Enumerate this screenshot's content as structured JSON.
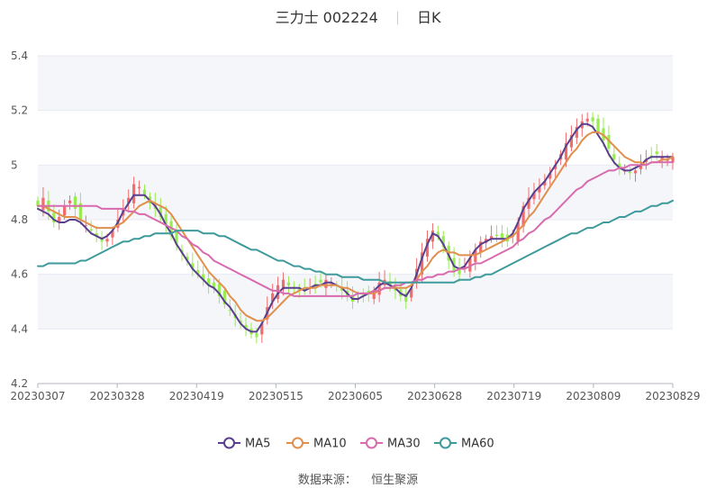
{
  "header": {
    "name": "三力士",
    "code": "002224",
    "period": "日K"
  },
  "source": {
    "label": "数据来源：",
    "value": "恒生聚源"
  },
  "colors": {
    "up": "#ef6d6d",
    "down": "#97ec4f",
    "grid": "#e8eaf2",
    "band": "#f5f6fa",
    "axis": "#b0b4bf"
  },
  "chart_data": {
    "type": "candlestick",
    "x_ticks": [
      "20230307",
      "20230328",
      "20230419",
      "20230515",
      "20230605",
      "20230628",
      "20230719",
      "20230809",
      "20230829"
    ],
    "y_ticks": [
      "4.2",
      "4.4",
      "4.6",
      "4.8",
      "5",
      "5.2",
      "5.4"
    ],
    "ylim": [
      4.2,
      5.4
    ],
    "legend": [
      {
        "name": "MA5",
        "color": "#5a3f8e"
      },
      {
        "name": "MA10",
        "color": "#e08f4d"
      },
      {
        "name": "MA30",
        "color": "#d86aaf"
      },
      {
        "name": "MA60",
        "color": "#3f9a9c"
      }
    ],
    "num_days": 120,
    "close": [
      4.85,
      4.88,
      4.83,
      4.79,
      4.81,
      4.85,
      4.87,
      4.84,
      4.8,
      4.78,
      4.76,
      4.74,
      4.72,
      4.73,
      4.76,
      4.8,
      4.84,
      4.88,
      4.93,
      4.92,
      4.89,
      4.86,
      4.84,
      4.81,
      4.78,
      4.74,
      4.71,
      4.68,
      4.65,
      4.62,
      4.6,
      4.58,
      4.56,
      4.55,
      4.52,
      4.49,
      4.47,
      4.44,
      4.42,
      4.4,
      4.38,
      4.37,
      4.42,
      4.48,
      4.53,
      4.56,
      4.58,
      4.56,
      4.55,
      4.54,
      4.54,
      4.55,
      4.56,
      4.57,
      4.58,
      4.57,
      4.56,
      4.54,
      4.52,
      4.5,
      4.51,
      4.52,
      4.53,
      4.54,
      4.57,
      4.58,
      4.56,
      4.54,
      4.52,
      4.5,
      4.55,
      4.62,
      4.68,
      4.73,
      4.76,
      4.74,
      4.7,
      4.65,
      4.61,
      4.6,
      4.63,
      4.66,
      4.69,
      4.72,
      4.73,
      4.74,
      4.74,
      4.73,
      4.72,
      4.74,
      4.79,
      4.85,
      4.88,
      4.9,
      4.92,
      4.94,
      4.97,
      5.0,
      5.04,
      5.08,
      5.11,
      5.14,
      5.16,
      5.17,
      5.16,
      5.12,
      5.09,
      5.06,
      5.02,
      4.99,
      4.98,
      4.97,
      4.98,
      5.0,
      5.02,
      5.03,
      5.04,
      5.03,
      5.02,
      5.03
    ],
    "series": [
      {
        "name": "MA5",
        "values": [
          4.84,
          4.83,
          4.82,
          4.8,
          4.79,
          4.79,
          4.8,
          4.8,
          4.79,
          4.77,
          4.75,
          4.74,
          4.73,
          4.74,
          4.76,
          4.79,
          4.83,
          4.86,
          4.89,
          4.89,
          4.89,
          4.87,
          4.85,
          4.82,
          4.78,
          4.75,
          4.71,
          4.68,
          4.65,
          4.62,
          4.6,
          4.58,
          4.56,
          4.55,
          4.53,
          4.5,
          4.48,
          4.45,
          4.42,
          4.4,
          4.39,
          4.39,
          4.42,
          4.46,
          4.5,
          4.53,
          4.55,
          4.55,
          4.55,
          4.55,
          4.54,
          4.55,
          4.56,
          4.56,
          4.57,
          4.57,
          4.56,
          4.55,
          4.53,
          4.51,
          4.51,
          4.52,
          4.53,
          4.54,
          4.56,
          4.57,
          4.56,
          4.55,
          4.53,
          4.52,
          4.55,
          4.6,
          4.66,
          4.71,
          4.75,
          4.74,
          4.71,
          4.67,
          4.63,
          4.62,
          4.63,
          4.66,
          4.69,
          4.71,
          4.72,
          4.73,
          4.73,
          4.73,
          4.73,
          4.75,
          4.79,
          4.84,
          4.87,
          4.9,
          4.92,
          4.94,
          4.97,
          5.0,
          5.03,
          5.07,
          5.1,
          5.13,
          5.15,
          5.15,
          5.14,
          5.11,
          5.08,
          5.04,
          5.01,
          4.99,
          4.98,
          4.98,
          4.99,
          5.0,
          5.02,
          5.03,
          5.03,
          5.03,
          5.03,
          5.03
        ]
      },
      {
        "name": "MA10",
        "values": [
          4.85,
          4.85,
          4.84,
          4.83,
          4.82,
          4.81,
          4.81,
          4.81,
          4.8,
          4.79,
          4.78,
          4.77,
          4.77,
          4.77,
          4.77,
          4.78,
          4.79,
          4.81,
          4.83,
          4.85,
          4.86,
          4.87,
          4.86,
          4.85,
          4.84,
          4.82,
          4.79,
          4.76,
          4.73,
          4.7,
          4.67,
          4.64,
          4.61,
          4.59,
          4.57,
          4.55,
          4.52,
          4.5,
          4.47,
          4.45,
          4.44,
          4.43,
          4.43,
          4.44,
          4.46,
          4.48,
          4.5,
          4.52,
          4.53,
          4.54,
          4.55,
          4.55,
          4.55,
          4.56,
          4.56,
          4.56,
          4.56,
          4.55,
          4.55,
          4.54,
          4.53,
          4.53,
          4.53,
          4.53,
          4.54,
          4.55,
          4.55,
          4.55,
          4.55,
          4.55,
          4.56,
          4.58,
          4.61,
          4.63,
          4.66,
          4.68,
          4.69,
          4.68,
          4.68,
          4.67,
          4.67,
          4.67,
          4.67,
          4.68,
          4.69,
          4.7,
          4.71,
          4.72,
          4.73,
          4.74,
          4.76,
          4.78,
          4.81,
          4.83,
          4.86,
          4.89,
          4.92,
          4.95,
          4.98,
          5.01,
          5.04,
          5.06,
          5.09,
          5.11,
          5.12,
          5.12,
          5.11,
          5.09,
          5.07,
          5.05,
          5.03,
          5.02,
          5.01,
          5.01,
          5.0,
          5.01,
          5.01,
          5.02,
          5.02,
          5.03
        ]
      },
      {
        "name": "MA30",
        "values": [
          4.85,
          4.85,
          4.85,
          4.85,
          4.85,
          4.85,
          4.85,
          4.85,
          4.85,
          4.85,
          4.85,
          4.85,
          4.84,
          4.84,
          4.84,
          4.84,
          4.84,
          4.83,
          4.83,
          4.82,
          4.82,
          4.81,
          4.8,
          4.79,
          4.78,
          4.77,
          4.76,
          4.74,
          4.73,
          4.71,
          4.7,
          4.68,
          4.67,
          4.65,
          4.64,
          4.63,
          4.62,
          4.61,
          4.6,
          4.59,
          4.58,
          4.57,
          4.56,
          4.55,
          4.54,
          4.54,
          4.53,
          4.53,
          4.52,
          4.52,
          4.52,
          4.52,
          4.52,
          4.52,
          4.52,
          4.52,
          4.52,
          4.52,
          4.52,
          4.52,
          4.53,
          4.53,
          4.53,
          4.54,
          4.54,
          4.55,
          4.55,
          4.56,
          4.56,
          4.57,
          4.57,
          4.58,
          4.58,
          4.59,
          4.59,
          4.6,
          4.6,
          4.61,
          4.61,
          4.62,
          4.62,
          4.63,
          4.64,
          4.64,
          4.65,
          4.66,
          4.67,
          4.68,
          4.69,
          4.7,
          4.72,
          4.73,
          4.75,
          4.76,
          4.78,
          4.8,
          4.81,
          4.83,
          4.85,
          4.87,
          4.89,
          4.91,
          4.92,
          4.94,
          4.95,
          4.96,
          4.97,
          4.98,
          4.98,
          4.99,
          4.99,
          5.0,
          5.0,
          5.0,
          5.0,
          5.01,
          5.01,
          5.01,
          5.01,
          5.01
        ]
      },
      {
        "name": "MA60",
        "values": [
          4.63,
          4.63,
          4.64,
          4.64,
          4.64,
          4.64,
          4.64,
          4.64,
          4.65,
          4.65,
          4.66,
          4.67,
          4.68,
          4.69,
          4.7,
          4.71,
          4.72,
          4.72,
          4.73,
          4.73,
          4.74,
          4.74,
          4.75,
          4.75,
          4.75,
          4.75,
          4.76,
          4.76,
          4.76,
          4.76,
          4.76,
          4.75,
          4.75,
          4.75,
          4.74,
          4.74,
          4.73,
          4.72,
          4.71,
          4.7,
          4.69,
          4.69,
          4.68,
          4.67,
          4.66,
          4.65,
          4.65,
          4.64,
          4.63,
          4.63,
          4.62,
          4.62,
          4.61,
          4.61,
          4.6,
          4.6,
          4.6,
          4.59,
          4.59,
          4.59,
          4.59,
          4.58,
          4.58,
          4.58,
          4.58,
          4.57,
          4.57,
          4.57,
          4.57,
          4.57,
          4.57,
          4.57,
          4.57,
          4.57,
          4.57,
          4.57,
          4.57,
          4.57,
          4.57,
          4.58,
          4.58,
          4.58,
          4.59,
          4.59,
          4.6,
          4.6,
          4.61,
          4.62,
          4.63,
          4.64,
          4.65,
          4.66,
          4.67,
          4.68,
          4.69,
          4.7,
          4.71,
          4.72,
          4.73,
          4.74,
          4.75,
          4.75,
          4.76,
          4.77,
          4.77,
          4.78,
          4.79,
          4.79,
          4.8,
          4.81,
          4.81,
          4.82,
          4.83,
          4.83,
          4.84,
          4.85,
          4.85,
          4.86,
          4.86,
          4.87
        ]
      }
    ]
  }
}
